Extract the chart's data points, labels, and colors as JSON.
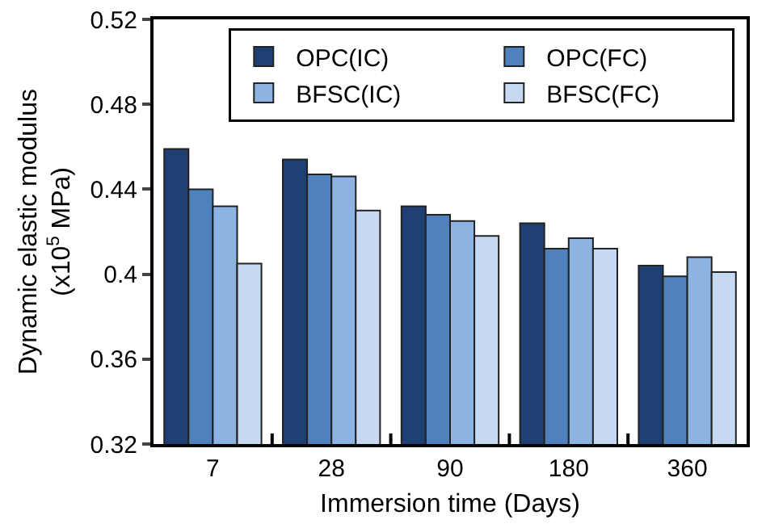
{
  "chart_data": {
    "type": "bar",
    "xlabel": "Immersion time (Days)",
    "ylabel": "Dynamic elastic modulus (x10$^{5}$ MPa)",
    "categories": [
      "7",
      "28",
      "90",
      "180",
      "360"
    ],
    "series": [
      {
        "name": "OPC(IC)",
        "color": "#1f3f73",
        "values": [
          0.459,
          0.454,
          0.432,
          0.424,
          0.404
        ]
      },
      {
        "name": "OPC(FC)",
        "color": "#4f81bd",
        "values": [
          0.44,
          0.447,
          0.428,
          0.412,
          0.399
        ]
      },
      {
        "name": "BFSC(IC)",
        "color": "#8db3e2",
        "values": [
          0.432,
          0.446,
          0.425,
          0.417,
          0.408
        ]
      },
      {
        "name": "BFSC(FC)",
        "color": "#c6d9f1",
        "values": [
          0.405,
          0.43,
          0.418,
          0.412,
          0.401
        ]
      }
    ],
    "ylim": [
      0.32,
      0.52
    ],
    "yticks": [
      0.32,
      0.36,
      0.4,
      0.44,
      0.48,
      0.52
    ],
    "grid": false,
    "legend": "top right"
  }
}
